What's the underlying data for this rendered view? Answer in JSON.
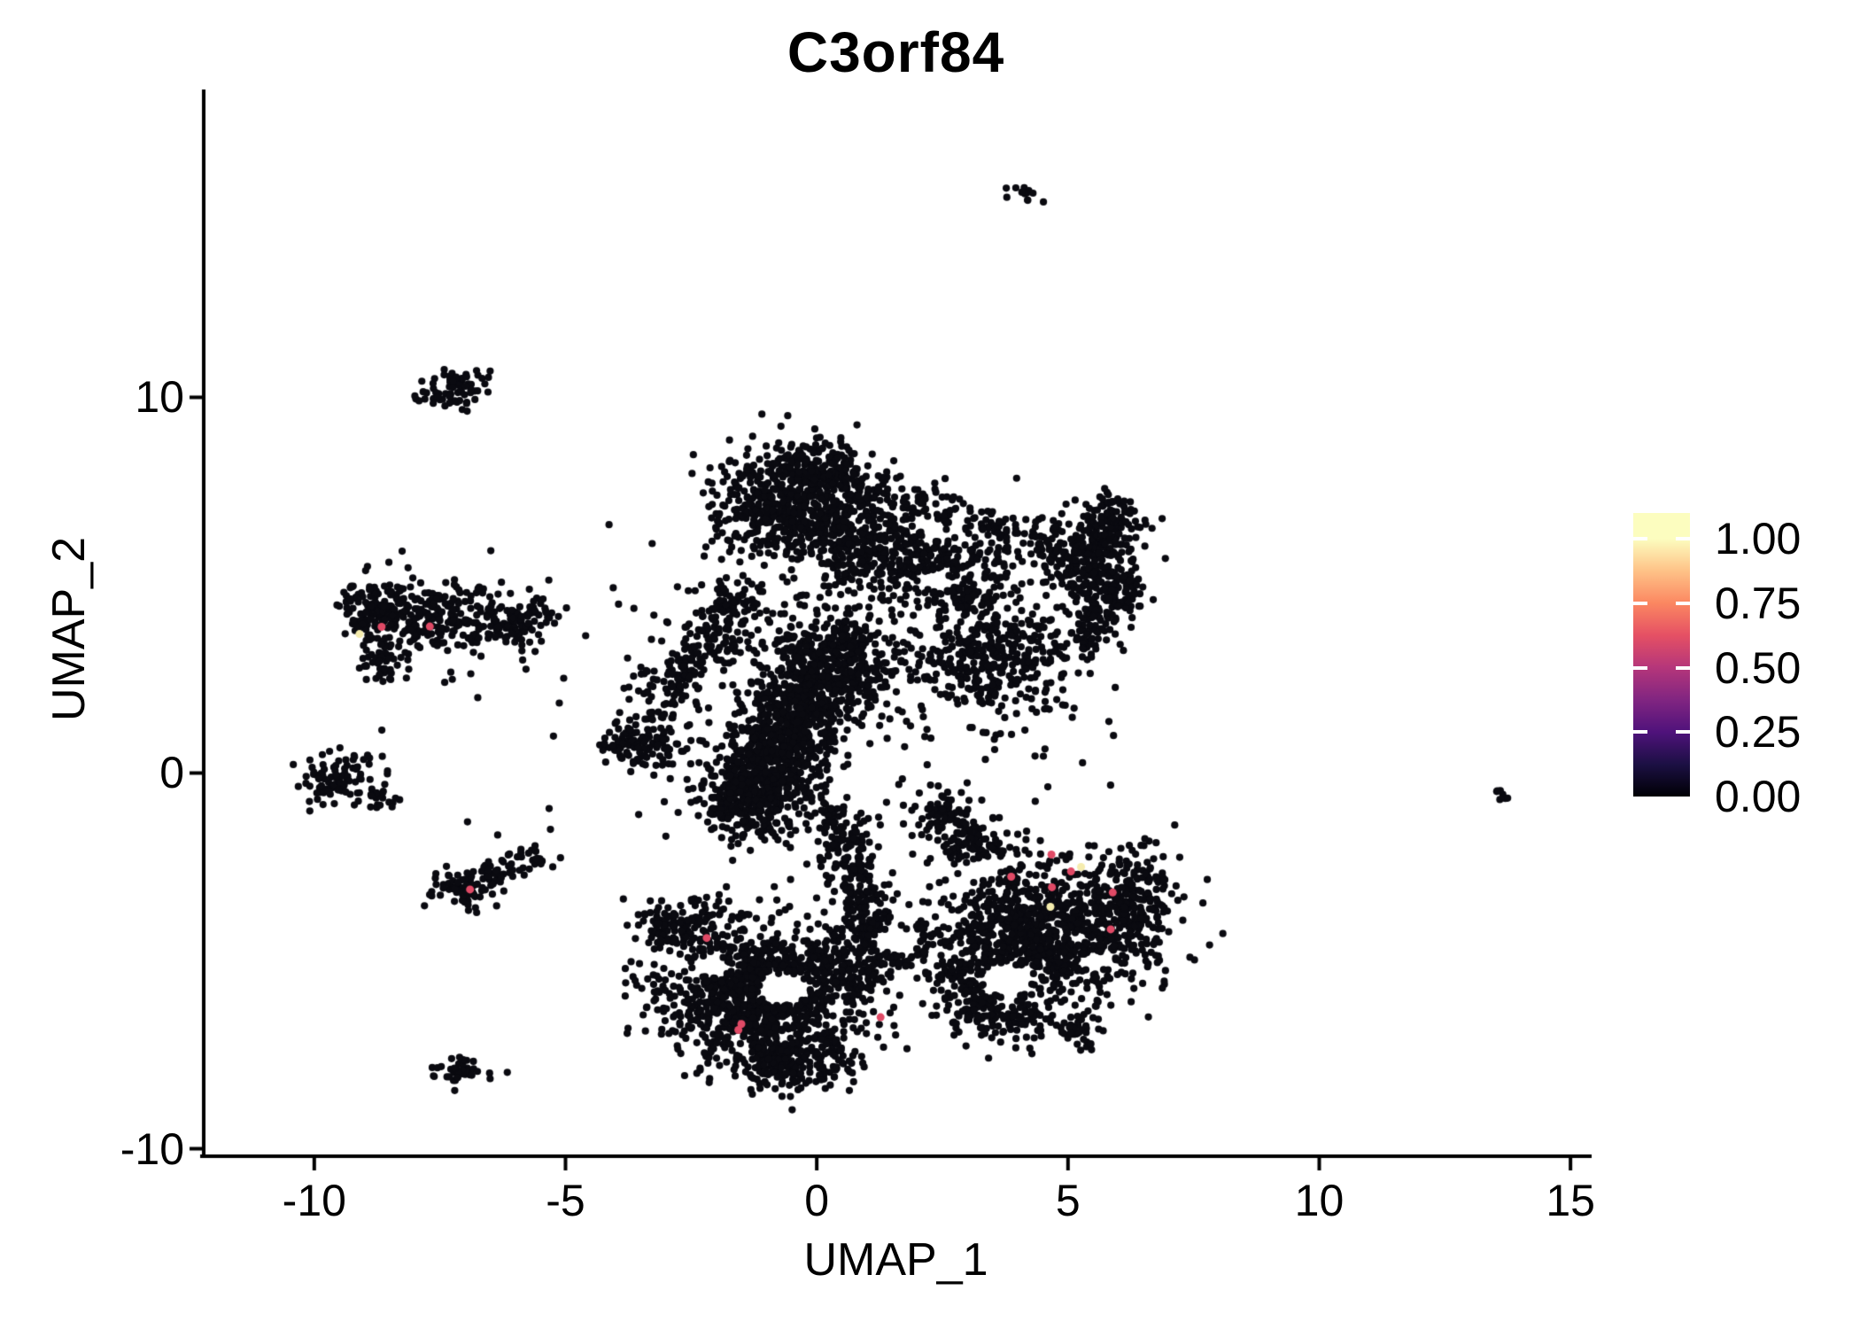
{
  "title": "C3orf84",
  "x_axis": {
    "label": "UMAP_1",
    "tick_values": [
      -10,
      -5,
      0,
      5,
      10,
      15
    ],
    "tick_labels": [
      "-10",
      "-5",
      "0",
      "5",
      "10",
      "15"
    ]
  },
  "y_axis": {
    "label": "UMAP_2",
    "tick_values": [
      10,
      0,
      -10
    ],
    "tick_labels": [
      "10",
      "0",
      "-10"
    ]
  },
  "legend": {
    "tick_values": [
      1.0,
      0.75,
      0.5,
      0.25,
      0.0
    ],
    "tick_labels": [
      "1.00",
      "0.75",
      "0.50",
      "0.25",
      "0.00"
    ],
    "max_value": 1.1,
    "gradient": [
      {
        "v": 0.0,
        "color": "#000004"
      },
      {
        "v": 0.125,
        "color": "#1c1044"
      },
      {
        "v": 0.25,
        "color": "#4f127b"
      },
      {
        "v": 0.375,
        "color": "#812581"
      },
      {
        "v": 0.5,
        "color": "#b5367a"
      },
      {
        "v": 0.625,
        "color": "#e55064"
      },
      {
        "v": 0.75,
        "color": "#fb8761"
      },
      {
        "v": 0.875,
        "color": "#fec287"
      },
      {
        "v": 1.0,
        "color": "#fcfdbf"
      },
      {
        "v": 1.1,
        "color": "#fcfdbf"
      }
    ]
  },
  "chart_data": {
    "type": "scatter",
    "title": "C3orf84",
    "xlabel": "UMAP_1",
    "ylabel": "UMAP_2",
    "xlim": [
      -12.2,
      15.35
    ],
    "ylim": [
      -10.2,
      18.1
    ],
    "grid": false,
    "point_color_default": "#0a0a10",
    "point_radius_px": 4.1,
    "seed": 7,
    "clusters": [
      {
        "name": "central-head",
        "kind": "blob",
        "cx": -0.4,
        "cy": 7.1,
        "sx": 0.8,
        "sy": 0.75,
        "n": 600
      },
      {
        "name": "central-head-top",
        "kind": "blob",
        "cx": -0.1,
        "cy": 8.15,
        "sx": 0.5,
        "sy": 0.33,
        "n": 140
      },
      {
        "name": "central-bridge",
        "kind": "band",
        "x1": 0.3,
        "y1": 6.3,
        "x2": 3.4,
        "y2": 4.9,
        "w": 0.55,
        "n": 520
      },
      {
        "name": "central-top-arc",
        "kind": "band",
        "x1": 0.4,
        "y1": 7.9,
        "x2": 4.7,
        "y2": 6.15,
        "w": 0.28,
        "n": 150
      },
      {
        "name": "central-hook",
        "kind": "blob",
        "cx": 5.4,
        "cy": 5.7,
        "sx": 0.5,
        "sy": 0.6,
        "n": 260
      },
      {
        "name": "central-hook-tip",
        "kind": "blob",
        "cx": 5.85,
        "cy": 6.8,
        "sx": 0.26,
        "sy": 0.3,
        "n": 80
      },
      {
        "name": "central-hook-edge",
        "kind": "band",
        "x1": 6.25,
        "y1": 5.2,
        "x2": 5.15,
        "y2": 3.35,
        "w": 0.3,
        "n": 150
      },
      {
        "name": "central-mid-right",
        "kind": "blob",
        "cx": 3.4,
        "cy": 3.2,
        "sx": 0.85,
        "sy": 0.8,
        "n": 360
      },
      {
        "name": "central-trunk",
        "kind": "band",
        "x1": -1.6,
        "y1": -1.3,
        "x2": 0.65,
        "y2": 3.85,
        "w": 0.55,
        "n": 1450
      },
      {
        "name": "central-left-arm",
        "kind": "band",
        "x1": -3.15,
        "y1": 1.7,
        "x2": -1.5,
        "y2": 4.85,
        "w": 0.38,
        "n": 260
      },
      {
        "name": "central-arm-spur",
        "kind": "blob",
        "cx": -3.5,
        "cy": 0.8,
        "sx": 0.4,
        "sy": 0.34,
        "n": 110
      },
      {
        "name": "central-neck",
        "kind": "band",
        "x1": 0.35,
        "y1": -0.9,
        "x2": 1.05,
        "y2": -4.2,
        "w": 0.3,
        "n": 230
      },
      {
        "name": "central-loop",
        "kind": "ring",
        "cx": 1.6,
        "cy": -4.45,
        "r": 0.6,
        "sr": 0.1,
        "a1": 100,
        "a2": 410,
        "n": 100
      },
      {
        "name": "central-speckle",
        "kind": "blob",
        "cx": 0.5,
        "cy": 2.3,
        "sx": 2.6,
        "sy": 2.4,
        "n": 240
      },
      {
        "name": "bottomleft-main",
        "kind": "blob",
        "cx": -1.15,
        "cy": -5.85,
        "sx": 1.0,
        "sy": 0.85,
        "n": 1150
      },
      {
        "name": "bottomleft-fringe",
        "kind": "band",
        "x1": -3.35,
        "y1": -4.25,
        "x2": -1.7,
        "y2": -3.75,
        "w": 0.35,
        "n": 130
      },
      {
        "name": "bottomleft-tip",
        "kind": "blob",
        "cx": -0.55,
        "cy": -7.65,
        "sx": 0.65,
        "sy": 0.4,
        "n": 220
      },
      {
        "name": "bottomleft-right",
        "kind": "band",
        "x1": 0.1,
        "y1": -4.7,
        "x2": 1.05,
        "y2": -5.65,
        "w": 0.35,
        "n": 130
      },
      {
        "name": "bottomright-main",
        "kind": "blob",
        "cx": 4.5,
        "cy": -4.3,
        "sx": 1.1,
        "sy": 0.95,
        "n": 1050
      },
      {
        "name": "bottomright-arm",
        "kind": "band",
        "x1": 2.25,
        "y1": -0.9,
        "x2": 3.7,
        "y2": -2.3,
        "w": 0.32,
        "n": 170
      },
      {
        "name": "bottomright-bulge",
        "kind": "blob",
        "cx": 6.3,
        "cy": -3.35,
        "sx": 0.4,
        "sy": 0.7,
        "n": 180
      },
      {
        "name": "bottomright-bottom",
        "kind": "band",
        "x1": 3.0,
        "y1": -6.45,
        "x2": 5.5,
        "y2": -6.85,
        "w": 0.3,
        "n": 130
      },
      {
        "name": "bottomright-left",
        "kind": "band",
        "x1": 2.6,
        "y1": -5.2,
        "x2": 3.3,
        "y2": -6.4,
        "w": 0.3,
        "n": 100
      },
      {
        "name": "satellite-top-tiny",
        "kind": "blob",
        "cx": 4.15,
        "cy": 15.4,
        "sx": 0.16,
        "sy": 0.13,
        "n": 14
      },
      {
        "name": "satellite-upperleft",
        "kind": "blob",
        "cx": -7.05,
        "cy": 10.3,
        "sx": 0.33,
        "sy": 0.27,
        "n": 60
      },
      {
        "name": "satellite-upperleft-tail",
        "kind": "band",
        "x1": -8.1,
        "y1": 9.9,
        "x2": -7.45,
        "y2": 10.05,
        "w": 0.13,
        "n": 16
      },
      {
        "name": "left-cluster-main",
        "kind": "blob",
        "cx": -7.55,
        "cy": 4.15,
        "sx": 0.75,
        "sy": 0.5,
        "n": 260
      },
      {
        "name": "left-cluster-lobe",
        "kind": "blob",
        "cx": -8.75,
        "cy": 4.35,
        "sx": 0.4,
        "sy": 0.45,
        "n": 110
      },
      {
        "name": "left-cluster-bltail",
        "kind": "band",
        "x1": -9.0,
        "y1": 2.6,
        "x2": -8.35,
        "y2": 3.35,
        "w": 0.22,
        "n": 45
      },
      {
        "name": "left-cluster-rtail",
        "kind": "band",
        "x1": -6.4,
        "y1": 3.7,
        "x2": -5.35,
        "y2": 4.25,
        "w": 0.3,
        "n": 80
      },
      {
        "name": "left-edge-cluster",
        "kind": "blob",
        "cx": -9.45,
        "cy": -0.05,
        "sx": 0.45,
        "sy": 0.4,
        "n": 95
      },
      {
        "name": "left-edge-tail",
        "kind": "band",
        "x1": -8.95,
        "y1": -0.55,
        "x2": -8.3,
        "y2": -0.75,
        "w": 0.15,
        "n": 18
      },
      {
        "name": "left-diag-blob",
        "kind": "blob",
        "cx": -7.0,
        "cy": -3.05,
        "sx": 0.3,
        "sy": 0.27,
        "n": 70
      },
      {
        "name": "left-diag-band",
        "kind": "band",
        "x1": -6.65,
        "y1": -2.85,
        "x2": -5.5,
        "y2": -2.1,
        "w": 0.2,
        "n": 55
      },
      {
        "name": "bottom-tiny",
        "kind": "blob",
        "cx": -7.0,
        "cy": -7.95,
        "sx": 0.32,
        "sy": 0.16,
        "n": 40
      },
      {
        "name": "far-right-dash",
        "kind": "band",
        "x1": 13.5,
        "y1": -0.4,
        "x2": 13.8,
        "y2": -0.8,
        "w": 0.06,
        "n": 8
      }
    ],
    "holes": [
      {
        "cx": -0.65,
        "cy": -5.75,
        "rx": 0.5,
        "ry": 0.42
      },
      {
        "cx": -2.1,
        "cy": -5.15,
        "rx": 0.33,
        "ry": 0.28
      },
      {
        "cx": 3.8,
        "cy": -5.5,
        "rx": 0.5,
        "ry": 0.4
      },
      {
        "cx": 3.35,
        "cy": -2.55,
        "rx": 0.33,
        "ry": 0.3
      },
      {
        "cx": 5.55,
        "cy": -5.0,
        "rx": 0.3,
        "ry": 0.25
      },
      {
        "cx": 1.6,
        "cy": -4.45,
        "rx": 0.38,
        "ry": 0.34
      },
      {
        "cx": 2.35,
        "cy": 5.15,
        "rx": 0.3,
        "ry": 0.26
      },
      {
        "cx": -0.15,
        "cy": 5.4,
        "rx": 0.26,
        "ry": 0.22
      }
    ],
    "extra_points": [
      {
        "x": -5.3,
        "y": -1.5
      },
      {
        "x": -6.95,
        "y": -1.3
      },
      {
        "x": -6.35,
        "y": -1.65
      },
      {
        "x": -6.5,
        "y": 10.7
      }
    ],
    "highlight_points": [
      {
        "x": -8.66,
        "y": 3.89,
        "value": 0.65,
        "color": "#e04a66"
      },
      {
        "x": -7.7,
        "y": 3.9,
        "value": 0.65,
        "color": "#e04a66"
      },
      {
        "x": -6.9,
        "y": -3.1,
        "value": 0.65,
        "color": "#e04a66"
      },
      {
        "x": 4.67,
        "y": -2.17,
        "value": 0.65,
        "color": "#e04a66"
      },
      {
        "x": 5.06,
        "y": -2.62,
        "value": 0.65,
        "color": "#e04a66"
      },
      {
        "x": 3.87,
        "y": -2.76,
        "value": 0.65,
        "color": "#e04a66"
      },
      {
        "x": 4.68,
        "y": -3.04,
        "value": 0.65,
        "color": "#e04a66"
      },
      {
        "x": 5.89,
        "y": -3.18,
        "value": 0.65,
        "color": "#e04a66"
      },
      {
        "x": 5.85,
        "y": -4.16,
        "value": 0.65,
        "color": "#e04a66"
      },
      {
        "x": 1.27,
        "y": -6.5,
        "value": 0.65,
        "color": "#e04a66"
      },
      {
        "x": -2.19,
        "y": -4.39,
        "value": 0.65,
        "color": "#e04a66"
      },
      {
        "x": -1.5,
        "y": -6.68,
        "value": 0.65,
        "color": "#e04a66"
      },
      {
        "x": -1.56,
        "y": -6.84,
        "value": 0.65,
        "color": "#e04a66"
      },
      {
        "x": -9.1,
        "y": 3.7,
        "value": 0.97,
        "color": "#f5ecae"
      },
      {
        "x": 5.26,
        "y": -2.5,
        "value": 0.97,
        "color": "#f5ecae"
      },
      {
        "x": 4.65,
        "y": -3.56,
        "value": 0.97,
        "color": "#f5ecae"
      }
    ]
  }
}
